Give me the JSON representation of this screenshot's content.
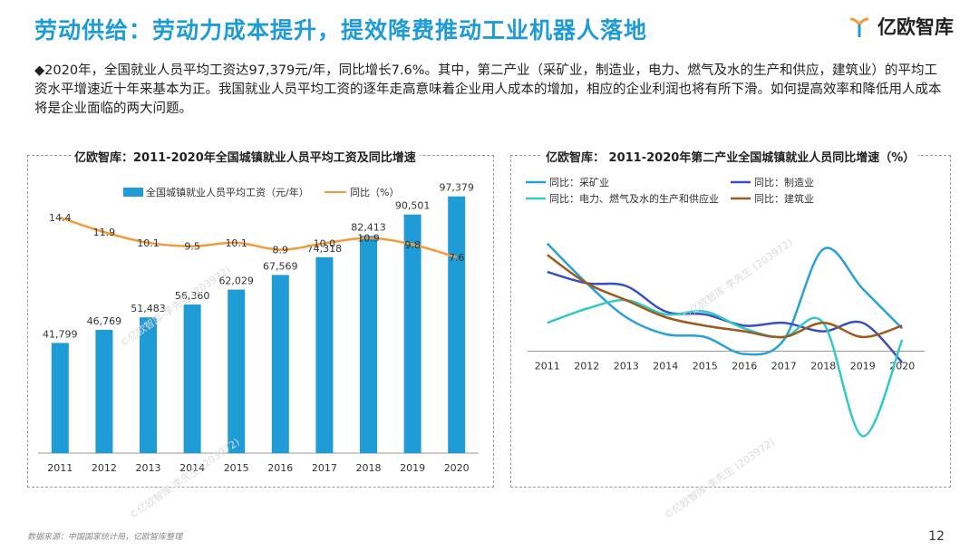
{
  "header": {
    "title": "劳动供给：劳动力成本提升，提效降费推动工业机器人落地",
    "logo_text": "亿欧智库"
  },
  "intro": "◆2020年，全国就业人员平均工资达97,379元/年，同比增长7.6%。其中，第二产业（采矿业，制造业，电力、燃气及水的生产和供应，建筑业）的平均工资水平增速近十年来基本为正。我国就业人员平均工资的逐年走高意味着企业用人成本的增加，相应的企业利润也将有所下滑。如何提高效率和降低用人成本将是企业面临的两大问题。",
  "footer": {
    "source": "数据来源：中国国家统计局，亿欧智库整理",
    "page": "12"
  },
  "watermark": "©亿欧智库-李先生 (203972)",
  "colors": {
    "accent": "#1f9bd6",
    "bar": "#1f9bd6",
    "line": "#f39a3a"
  },
  "chart_data": [
    {
      "type": "bar",
      "title": "亿欧智库：2011-2020年全国城镇就业人员平均工资及同比增速",
      "categories": [
        "2011",
        "2012",
        "2013",
        "2014",
        "2015",
        "2016",
        "2017",
        "2018",
        "2019",
        "2020"
      ],
      "series": [
        {
          "name": "全国城镇就业人员平均工资（元/年）",
          "kind": "bar",
          "color": "#1f9bd6",
          "values": [
            41799,
            46769,
            51483,
            56360,
            62029,
            67569,
            74318,
            82413,
            90501,
            97379
          ],
          "labels": [
            "41,799",
            "46,769",
            "51,483",
            "56,360",
            "62,029",
            "67,569",
            "74,318",
            "82,413",
            "90,501",
            "97,379"
          ]
        },
        {
          "name": "同比（%）",
          "kind": "line",
          "color": "#f39a3a",
          "values": [
            14.4,
            11.9,
            10.1,
            9.5,
            10.1,
            8.9,
            10.0,
            10.9,
            9.8,
            7.6
          ],
          "labels": [
            "14.4",
            "11.9",
            "10.1",
            "9.5",
            "10.1",
            "8.9",
            "10.0",
            "10.9",
            "9.8",
            "7.6"
          ]
        }
      ],
      "ylim_bar": [
        0,
        110000
      ],
      "ylim_line": [
        0,
        16
      ]
    },
    {
      "type": "line",
      "title": "亿欧智库：  2011-2020年第二产业全国城镇就业人员同比增速（%）",
      "categories": [
        "2011",
        "2012",
        "2013",
        "2014",
        "2015",
        "2016",
        "2017",
        "2018",
        "2019",
        "2020"
      ],
      "series": [
        {
          "name": "同比：采矿业",
          "color": "#2a9fd8",
          "values": [
            19,
            12,
            6,
            3,
            2.5,
            -0.5,
            2,
            18,
            11,
            4
          ]
        },
        {
          "name": "同比：制造业",
          "color": "#3a4fbf",
          "values": [
            14,
            12,
            11.5,
            7,
            6.5,
            4.5,
            5,
            3.5,
            5,
            -2
          ]
        },
        {
          "name": "同比：电力、燃气及水的生产和供应业",
          "color": "#33c9c2",
          "values": [
            5,
            7.5,
            9,
            6.5,
            7,
            4,
            2.5,
            5,
            -15,
            2
          ]
        },
        {
          "name": "同比：建筑业",
          "color": "#9c5a1c",
          "values": [
            17,
            12,
            9,
            6,
            4.5,
            3.5,
            2.5,
            5,
            2.5,
            4.5
          ]
        }
      ],
      "ylim": [
        -18,
        22
      ]
    }
  ]
}
